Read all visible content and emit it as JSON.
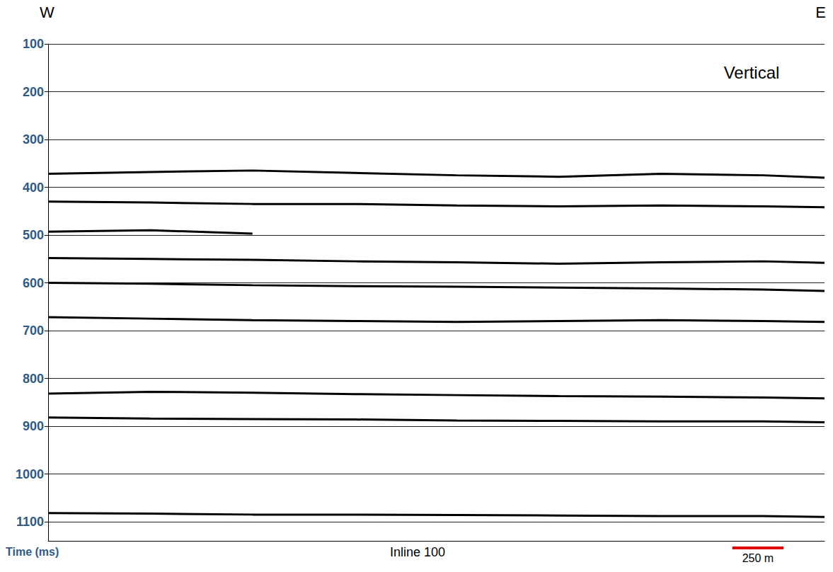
{
  "chart_data": {
    "type": "line",
    "title": "Inline 100",
    "ylabel": "Time (ms)",
    "annotations": {
      "west": "W",
      "east": "E",
      "component": "Vertical"
    },
    "scale_bar": {
      "length": 250,
      "label": "250 m"
    },
    "x": [
      0,
      500,
      1000,
      1500,
      2000,
      2500,
      3000,
      3500,
      3800
    ],
    "xlim": [
      0,
      3800
    ],
    "ylim": [
      100,
      1140
    ],
    "yticks": [
      100,
      200,
      300,
      400,
      500,
      600,
      700,
      800,
      900,
      1000,
      1100
    ],
    "log": false,
    "grid": true,
    "tick_labels": "y",
    "series": [
      {
        "color": "#000000",
        "line_style": "solid",
        "values": [
          372,
          368,
          365,
          370,
          375,
          378,
          372,
          375,
          380
        ]
      },
      {
        "color": "#000000",
        "line_style": "solid",
        "values": [
          430,
          432,
          435,
          435,
          438,
          440,
          438,
          440,
          442
        ]
      },
      {
        "color": "#000000",
        "line_style": "solid",
        "values": [
          493,
          490,
          497,
          null,
          null,
          null,
          null,
          null,
          null
        ]
      },
      {
        "color": "#000000",
        "line_style": "solid",
        "values": [
          548,
          550,
          552,
          555,
          557,
          560,
          557,
          555,
          558
        ]
      },
      {
        "color": "#000000",
        "line_style": "solid",
        "values": [
          600,
          602,
          605,
          607,
          608,
          610,
          612,
          614,
          617
        ]
      },
      {
        "color": "#000000",
        "line_style": "solid",
        "values": [
          672,
          675,
          678,
          680,
          682,
          680,
          678,
          680,
          682
        ]
      },
      {
        "color": "#000000",
        "line_style": "solid",
        "values": [
          832,
          828,
          830,
          833,
          835,
          837,
          838,
          840,
          842
        ]
      },
      {
        "color": "#000000",
        "line_style": "solid",
        "values": [
          882,
          884,
          885,
          886,
          888,
          889,
          890,
          890,
          892
        ]
      },
      {
        "color": "#000000",
        "line_style": "solid",
        "values": [
          1082,
          1083,
          1085,
          1085,
          1086,
          1087,
          1088,
          1088,
          1090
        ]
      }
    ]
  }
}
